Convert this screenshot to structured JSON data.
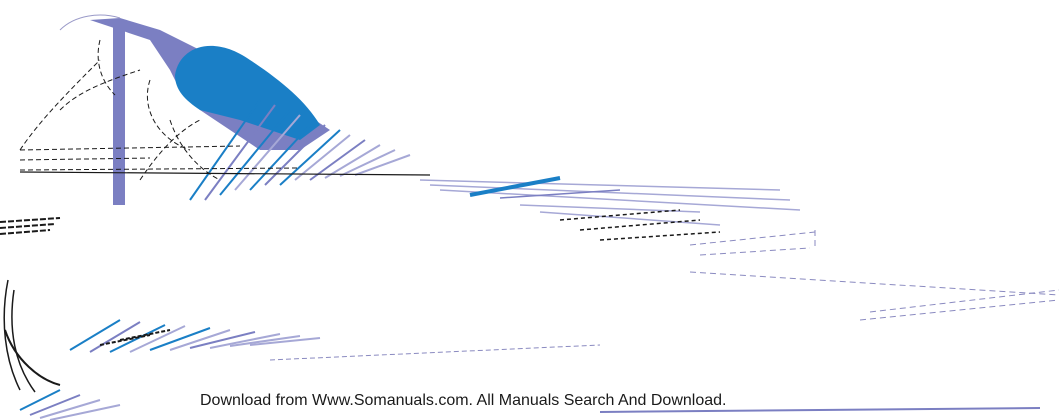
{
  "footer": {
    "text": "Download from Www.Somanuals.com. All Manuals Search And Download."
  },
  "artwork": {
    "colors": {
      "lavender": "#7b7fc2",
      "blue": "#1a7fc6",
      "light_lavender": "#a6a8d6",
      "ink": "#1a1a1a"
    }
  }
}
